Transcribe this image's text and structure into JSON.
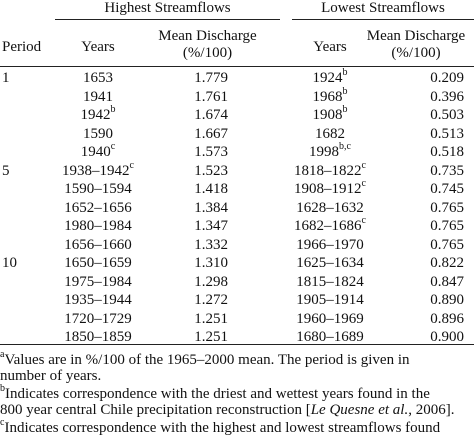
{
  "table": {
    "groups": [
      "Highest Streamflows",
      "Lowest Streamflows"
    ],
    "columns": [
      "Period",
      "Years",
      {
        "line1": "Mean Discharge",
        "line2": "(%/100)"
      },
      "Years",
      {
        "line1": "Mean Discharge",
        "line2": "(%/100)"
      }
    ],
    "rows": [
      [
        "1",
        "1653",
        "1.779",
        {
          "text": "1924",
          "sup": "b"
        },
        "0.209"
      ],
      [
        null,
        "1941",
        "1.761",
        {
          "text": "1968",
          "sup": "b"
        },
        "0.396"
      ],
      [
        null,
        {
          "text": "1942",
          "sup": "b"
        },
        "1.674",
        {
          "text": "1908",
          "sup": "b"
        },
        "0.503"
      ],
      [
        null,
        "1590",
        "1.667",
        "1682",
        "0.513"
      ],
      [
        null,
        {
          "text": "1940",
          "sup": "c"
        },
        "1.573",
        {
          "text": "1998",
          "sup": "b,c"
        },
        "0.518"
      ],
      [
        "5",
        {
          "text": "1938–1942",
          "sup": "c"
        },
        "1.523",
        {
          "text": "1818–1822",
          "sup": "c"
        },
        "0.735"
      ],
      [
        null,
        "1590–1594",
        "1.418",
        {
          "text": "1908–1912",
          "sup": "c"
        },
        "0.745"
      ],
      [
        null,
        "1652–1656",
        "1.384",
        "1628–1632",
        "0.765"
      ],
      [
        null,
        "1980–1984",
        "1.347",
        {
          "text": "1682–1686",
          "sup": "c"
        },
        "0.765"
      ],
      [
        null,
        "1656–1660",
        "1.332",
        "1966–1970",
        "0.765"
      ],
      [
        "10",
        "1650–1659",
        "1.310",
        "1625–1634",
        "0.822"
      ],
      [
        null,
        "1975–1984",
        "1.298",
        "1815–1824",
        "0.847"
      ],
      [
        null,
        "1935–1944",
        "1.272",
        "1905–1914",
        "0.890"
      ],
      [
        null,
        "1720–1729",
        "1.251",
        "1960–1969",
        "0.896"
      ],
      [
        null,
        "1850–1859",
        "1.251",
        "1680–1689",
        "0.900"
      ]
    ]
  },
  "footnotes": [
    {
      "mark": "a",
      "lines": [
        [
          "Values are in %/100 of the 1965–2000 mean. The period is given in"
        ],
        [
          "number of years."
        ]
      ]
    },
    {
      "mark": "b",
      "lines": [
        [
          "Indicates correspondence with the driest and wettest years found in the"
        ],
        [
          "800 year central Chile precipitation reconstruction [",
          {
            "italic": "Le Quesne et al."
          },
          ", 2006]."
        ]
      ]
    },
    {
      "mark": "c",
      "lines": [
        [
          "Indicates correspondence with the highest and lowest streamflows found"
        ]
      ]
    }
  ]
}
